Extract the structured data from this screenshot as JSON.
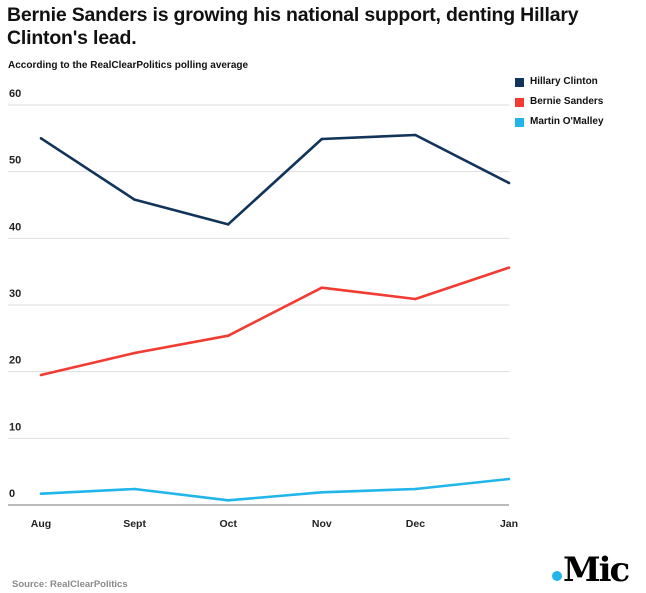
{
  "title": "Bernie Sanders is growing his national support, denting Hillary Clinton's lead.",
  "subtitle": "According to the RealClearPolitics polling average",
  "source": "Source: RealClearPolitics",
  "logo_text": "Mic",
  "chart_data": {
    "type": "line",
    "title": "Bernie Sanders is growing his national support, denting Hillary Clinton's lead.",
    "subtitle": "According to the RealClearPolitics polling average",
    "categories": [
      "Aug",
      "Sept",
      "Oct",
      "Nov",
      "Dec",
      "Jan"
    ],
    "yticks": [
      0,
      10,
      20,
      30,
      40,
      50,
      60
    ],
    "ylim": [
      0,
      60
    ],
    "grid": true,
    "legend": "top-right",
    "series": [
      {
        "name": "Hillary Clinton",
        "color": "#12335a",
        "values": [
          55.0,
          45.8,
          42.1,
          54.9,
          55.5,
          48.3
        ]
      },
      {
        "name": "Bernie Sanders",
        "color": "#f23b32",
        "values": [
          19.5,
          22.8,
          25.4,
          32.6,
          30.9,
          35.6
        ]
      },
      {
        "name": "Martin O'Malley",
        "color": "#21b5ea",
        "values": [
          1.7,
          2.4,
          0.7,
          1.9,
          2.4,
          3.9
        ]
      }
    ]
  }
}
